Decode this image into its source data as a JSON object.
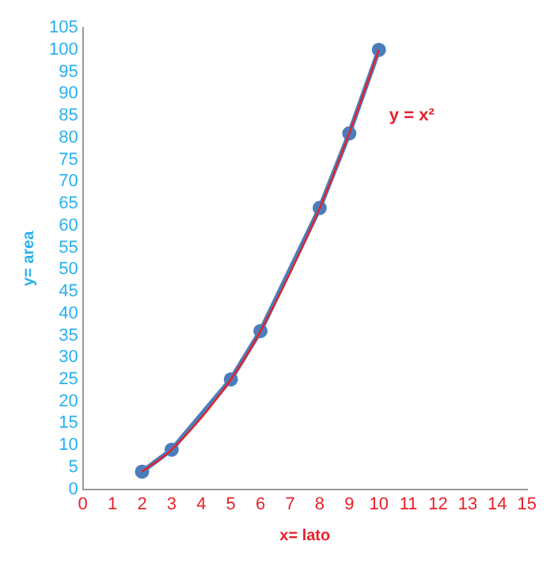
{
  "chart_data": {
    "type": "line",
    "xlabel": "x= lato",
    "ylabel": "y= area",
    "xlim": [
      0,
      15
    ],
    "xticks": [
      0,
      1,
      2,
      3,
      4,
      5,
      6,
      7,
      8,
      9,
      10,
      11,
      12,
      13,
      14,
      15
    ],
    "ylim": [
      0,
      105
    ],
    "yticks": [
      0,
      5,
      10,
      15,
      20,
      25,
      30,
      35,
      40,
      45,
      50,
      55,
      60,
      65,
      70,
      75,
      80,
      85,
      90,
      95,
      100,
      105
    ],
    "grid": false,
    "legend": false,
    "annotations": [
      "y = x²"
    ],
    "series": [
      {
        "color": "#4a7ebb",
        "marker": "circle",
        "x": [
          2,
          3,
          5,
          6,
          8,
          9,
          10
        ],
        "values": [
          4,
          9,
          25,
          36,
          64,
          81,
          100
        ]
      },
      {
        "color": "#e8202a",
        "marker": "none",
        "x": [
          2,
          3,
          5,
          6,
          8,
          9,
          10
        ],
        "values": [
          4,
          9,
          25,
          36,
          64,
          81,
          100
        ]
      }
    ]
  }
}
